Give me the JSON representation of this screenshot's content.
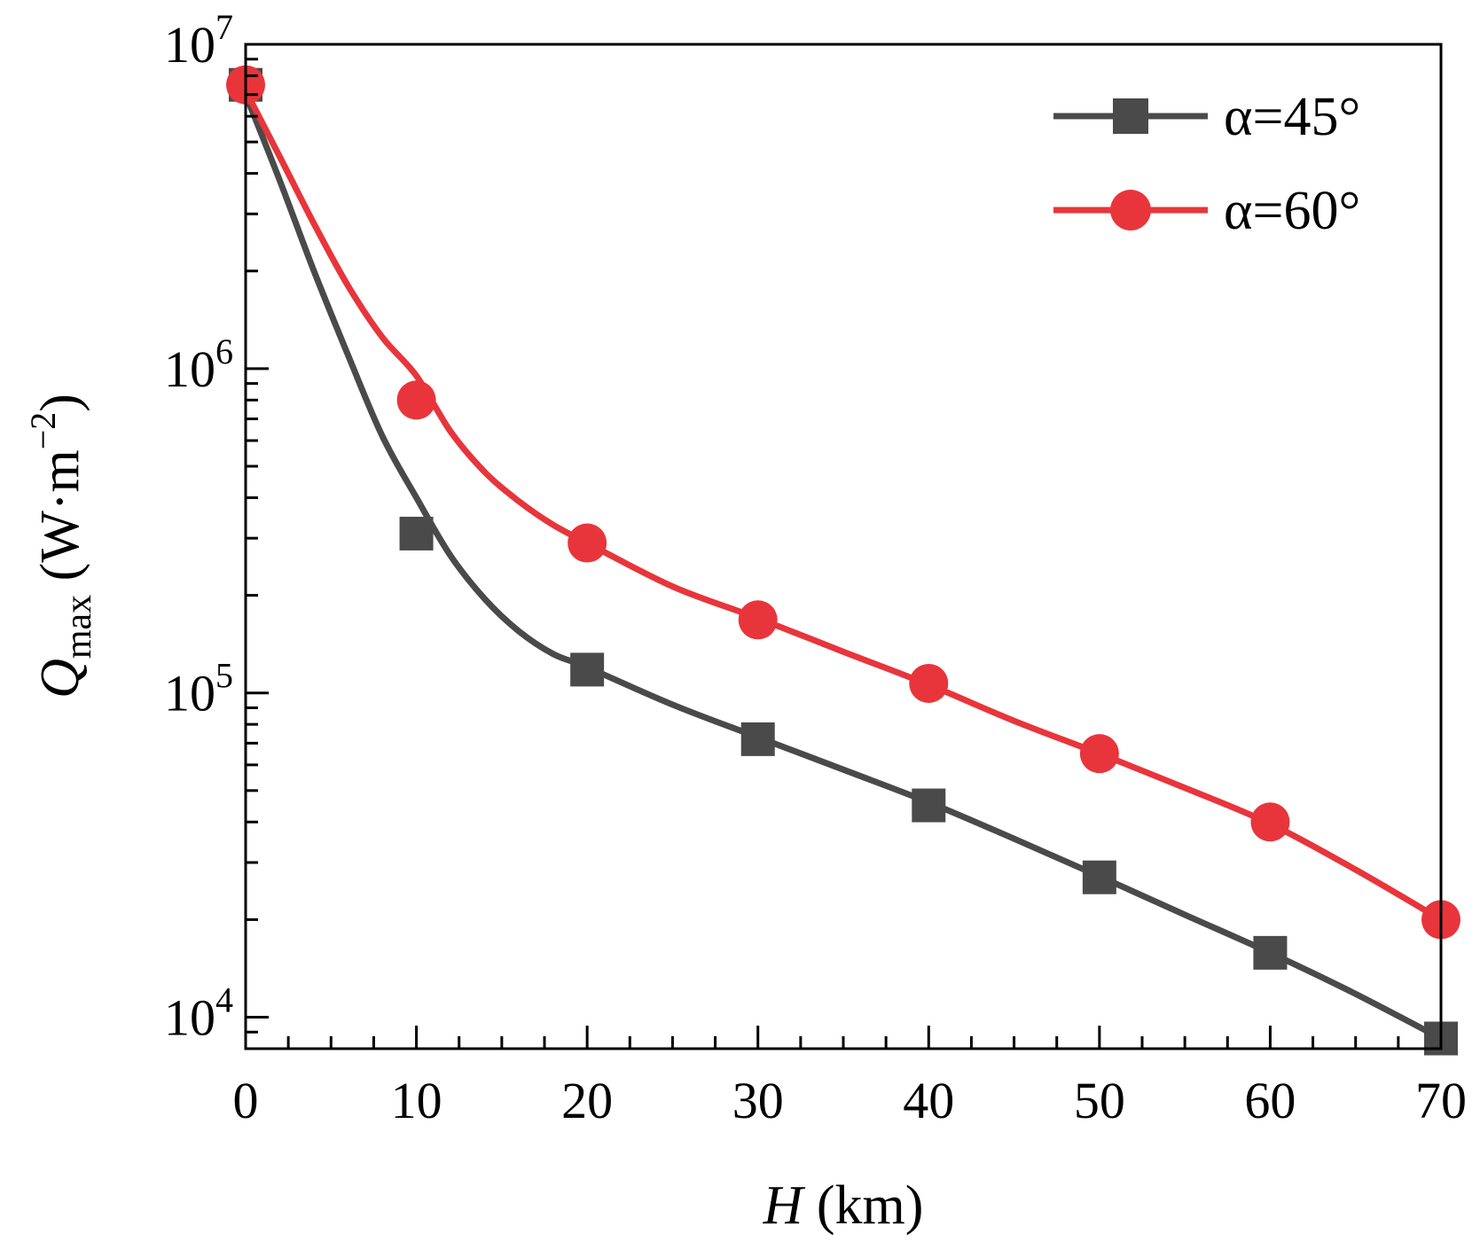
{
  "chart_data": {
    "type": "line",
    "title": "",
    "xlabel": {
      "italic": "H",
      "rest": " (km)"
    },
    "ylabel": {
      "italic": "Q",
      "sub": "max",
      "open": " (W·m",
      "sup": "−2",
      "close": ")"
    },
    "xlim": [
      0,
      70
    ],
    "ylim": [
      8000,
      10000000
    ],
    "yscale": "log",
    "x_ticks": [
      0,
      10,
      20,
      30,
      40,
      50,
      60,
      70
    ],
    "x_tick_labels": [
      "0",
      "10",
      "20",
      "30",
      "40",
      "50",
      "60",
      "70"
    ],
    "y_ticks": [
      10000,
      100000,
      1000000,
      10000000
    ],
    "y_tick_labels": [
      {
        "base": "10",
        "exp": "4"
      },
      {
        "base": "10",
        "exp": "5"
      },
      {
        "base": "10",
        "exp": "6"
      },
      {
        "base": "10",
        "exp": "7"
      }
    ],
    "legend_position": "top-right",
    "series": [
      {
        "name": "α=45°",
        "marker": "square",
        "color": "#4a4a4a",
        "x": [
          0,
          10,
          20,
          30,
          40,
          50,
          60,
          70
        ],
        "values": [
          7500000,
          310000,
          118000,
          72000,
          45000,
          27000,
          15800,
          8600
        ],
        "curve_x": [
          0,
          2,
          4,
          6,
          8,
          10,
          12,
          14,
          16,
          18,
          20,
          25,
          30,
          35,
          40,
          45,
          50,
          55,
          60,
          65,
          70
        ],
        "curve_y": [
          7000000,
          3800000,
          2000000,
          1100000,
          620000,
          400000,
          265000,
          195000,
          155000,
          132000,
          120000,
          92000,
          73000,
          58000,
          46000,
          35500,
          27200,
          20700,
          15800,
          11800,
          8600
        ]
      },
      {
        "name": "α=60°",
        "marker": "circle",
        "color": "#e8353b",
        "x": [
          0,
          10,
          20,
          30,
          40,
          50,
          60,
          70
        ],
        "values": [
          7500000,
          800000,
          290000,
          168000,
          107000,
          65000,
          40000,
          20000
        ],
        "curve_x": [
          0,
          2,
          4,
          6,
          8,
          10,
          12,
          14,
          16,
          18,
          20,
          25,
          30,
          35,
          40,
          45,
          50,
          55,
          60,
          65,
          70
        ],
        "curve_y": [
          7200000,
          4500000,
          2800000,
          1800000,
          1250000,
          950000,
          640000,
          480000,
          390000,
          330000,
          290000,
          213000,
          170000,
          134000,
          106000,
          82000,
          65000,
          51000,
          39500,
          28500,
          20000
        ]
      }
    ]
  }
}
